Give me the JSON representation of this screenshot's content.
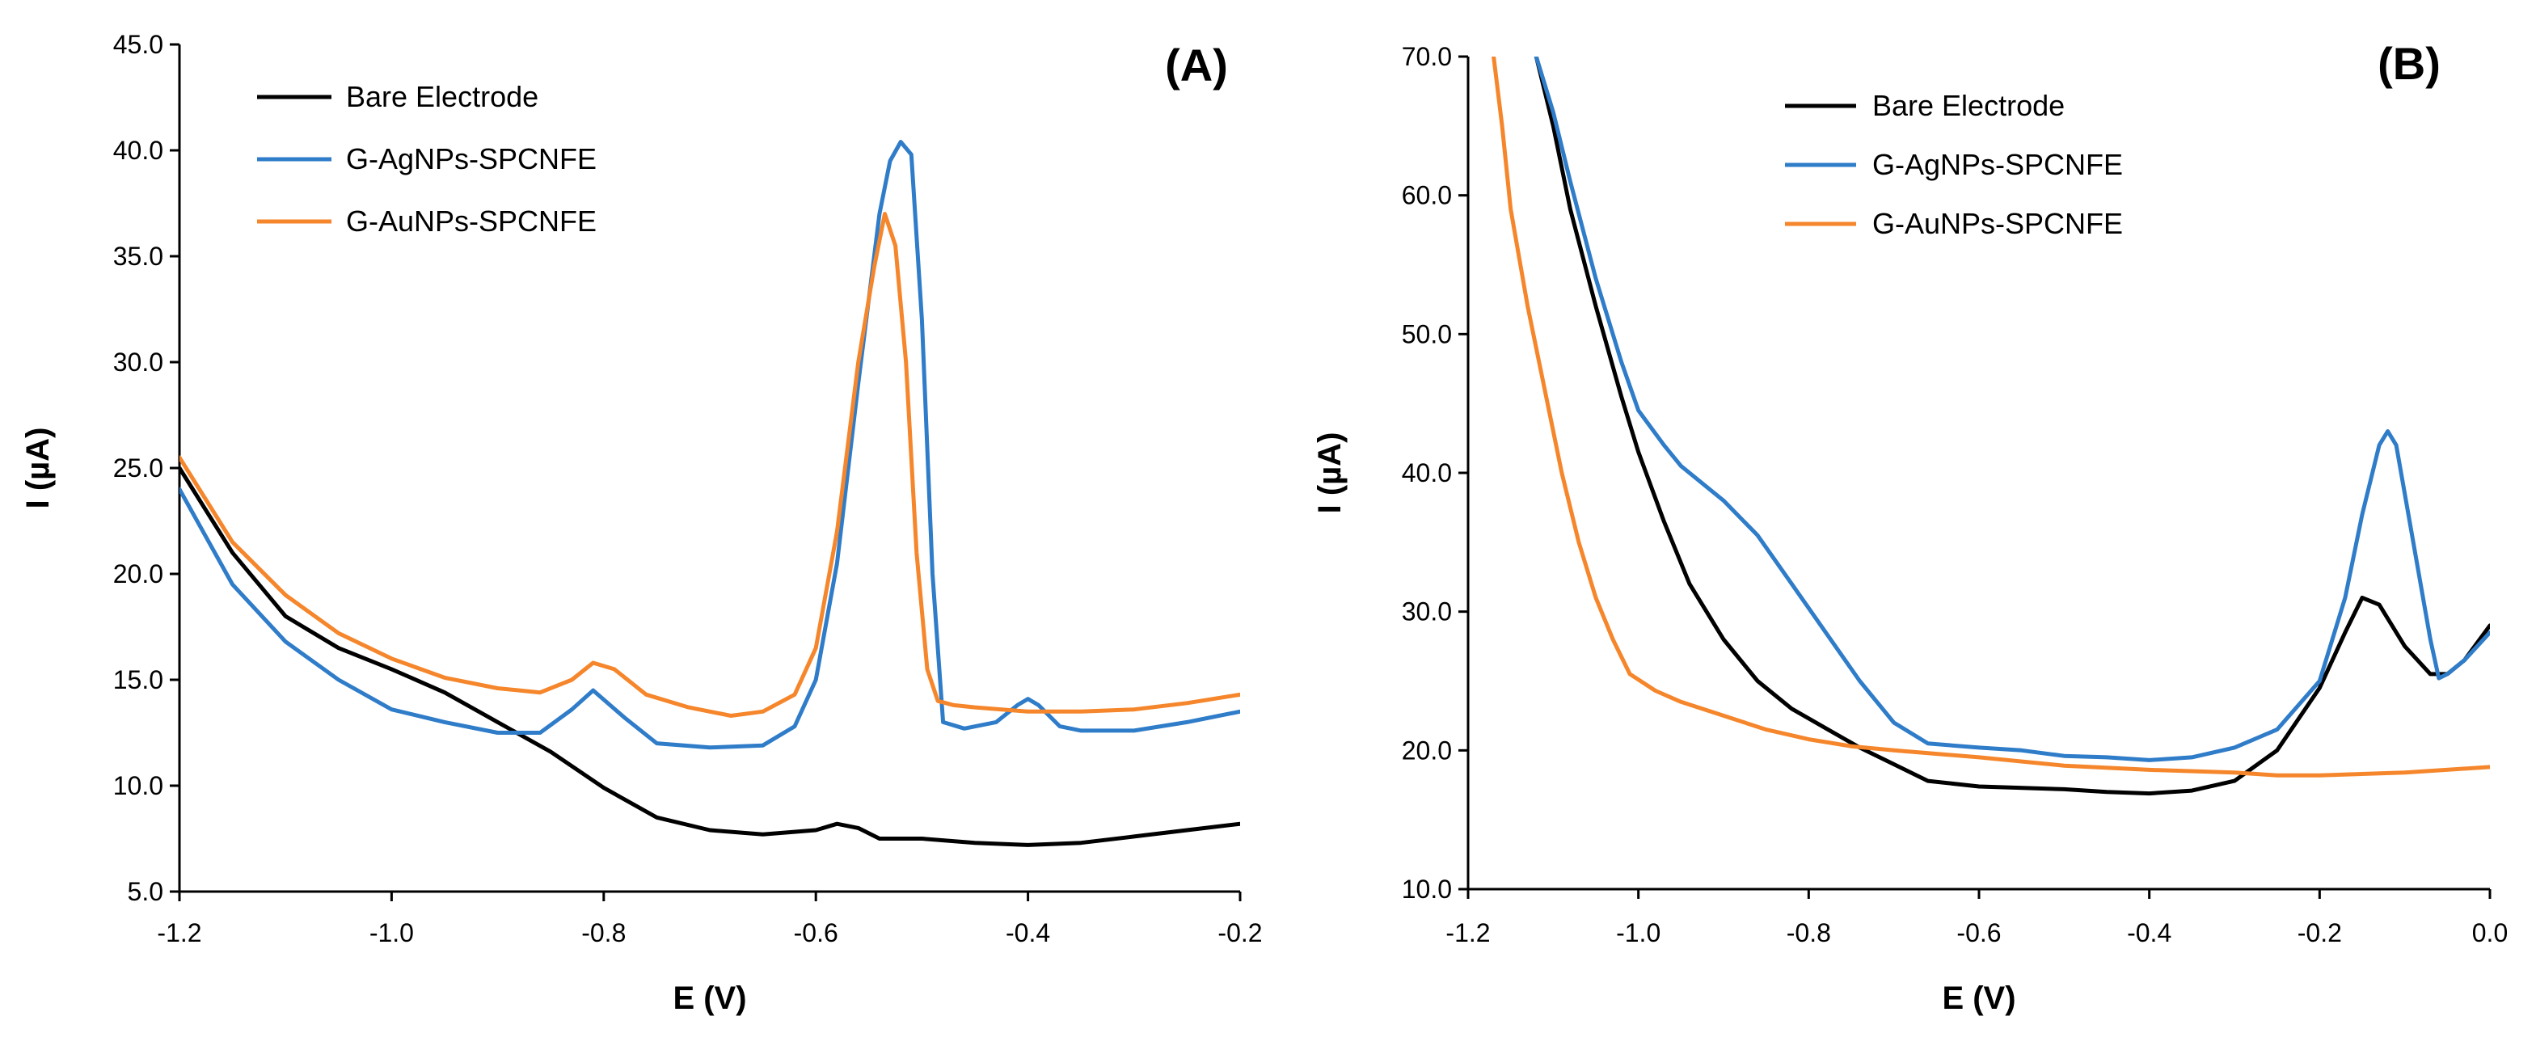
{
  "colors": {
    "bare": "#000000",
    "ag": "#2f7cc9",
    "au": "#f5862b",
    "axis": "#000000"
  },
  "chart_data": [
    {
      "type": "line",
      "panel_label": "(A)",
      "xlabel": "E (V)",
      "ylabel": "I (µA)",
      "xlim": [
        -1.2,
        -0.2
      ],
      "ylim": [
        5.0,
        45.0
      ],
      "x_ticks": [
        -1.2,
        -1.0,
        -0.8,
        -0.6,
        -0.4,
        -0.2
      ],
      "x_tick_labels": [
        "-1.2",
        "-1.0",
        "-0.8",
        "-0.6",
        "-0.4",
        "-0.2"
      ],
      "y_ticks": [
        5,
        10,
        15,
        20,
        25,
        30,
        35,
        40,
        45
      ],
      "y_tick_labels": [
        "5.0",
        "10.0",
        "15.0",
        "20.0",
        "25.0",
        "30.0",
        "35.0",
        "40.0",
        "45.0"
      ],
      "legend": [
        "Bare Electrode",
        "G-AgNPs-SPCNFE",
        "G-AuNPs-SPCNFE"
      ],
      "series": [
        {
          "name": "Bare Electrode",
          "color": "#000000",
          "x": [
            -1.2,
            -1.15,
            -1.1,
            -1.05,
            -1.0,
            -0.95,
            -0.9,
            -0.85,
            -0.8,
            -0.75,
            -0.7,
            -0.65,
            -0.6,
            -0.58,
            -0.56,
            -0.54,
            -0.5,
            -0.45,
            -0.4,
            -0.35,
            -0.3,
            -0.25,
            -0.2
          ],
          "y": [
            25.0,
            21.0,
            18.0,
            16.5,
            15.5,
            14.4,
            13.0,
            11.6,
            9.9,
            8.5,
            7.9,
            7.7,
            7.9,
            8.2,
            8.0,
            7.5,
            7.5,
            7.3,
            7.2,
            7.3,
            7.6,
            7.9,
            8.2
          ]
        },
        {
          "name": "G-AgNPs-SPCNFE",
          "color": "#2f7cc9",
          "x": [
            -1.2,
            -1.15,
            -1.1,
            -1.05,
            -1.0,
            -0.95,
            -0.9,
            -0.86,
            -0.83,
            -0.81,
            -0.78,
            -0.75,
            -0.7,
            -0.65,
            -0.62,
            -0.6,
            -0.58,
            -0.56,
            -0.54,
            -0.53,
            -0.52,
            -0.51,
            -0.5,
            -0.49,
            -0.48,
            -0.46,
            -0.43,
            -0.41,
            -0.4,
            -0.39,
            -0.37,
            -0.35,
            -0.3,
            -0.25,
            -0.2
          ],
          "y": [
            24.0,
            19.5,
            16.8,
            15.0,
            13.6,
            13.0,
            12.5,
            12.5,
            13.6,
            14.5,
            13.2,
            12.0,
            11.8,
            11.9,
            12.8,
            15.0,
            20.5,
            29.0,
            37.0,
            39.5,
            40.4,
            39.8,
            32.0,
            20.0,
            13.0,
            12.7,
            13.0,
            13.8,
            14.1,
            13.8,
            12.8,
            12.6,
            12.6,
            13.0,
            13.5
          ]
        },
        {
          "name": "G-AuNPs-SPCNFE",
          "color": "#f5862b",
          "x": [
            -1.2,
            -1.15,
            -1.1,
            -1.05,
            -1.0,
            -0.95,
            -0.9,
            -0.86,
            -0.83,
            -0.81,
            -0.79,
            -0.76,
            -0.72,
            -0.68,
            -0.65,
            -0.62,
            -0.6,
            -0.58,
            -0.56,
            -0.545,
            -0.535,
            -0.525,
            -0.515,
            -0.505,
            -0.495,
            -0.485,
            -0.47,
            -0.45,
            -0.4,
            -0.35,
            -0.3,
            -0.25,
            -0.2
          ],
          "y": [
            25.5,
            21.5,
            19.0,
            17.2,
            16.0,
            15.1,
            14.6,
            14.4,
            15.0,
            15.8,
            15.5,
            14.3,
            13.7,
            13.3,
            13.5,
            14.3,
            16.5,
            22.0,
            30.0,
            34.5,
            37.0,
            35.5,
            30.0,
            21.0,
            15.5,
            14.0,
            13.8,
            13.7,
            13.5,
            13.5,
            13.6,
            13.9,
            14.3
          ]
        }
      ]
    },
    {
      "type": "line",
      "panel_label": "(B)",
      "xlabel": "E (V)",
      "ylabel": "I (µA)",
      "xlim": [
        -1.2,
        0.0
      ],
      "ylim": [
        10.0,
        70.0
      ],
      "x_ticks": [
        -1.2,
        -1.0,
        -0.8,
        -0.6,
        -0.4,
        -0.2,
        0.0
      ],
      "x_tick_labels": [
        "-1.2",
        "-1.0",
        "-0.8",
        "-0.6",
        "-0.4",
        "-0.2",
        "0.0"
      ],
      "y_ticks": [
        10,
        20,
        30,
        40,
        50,
        60,
        70
      ],
      "y_tick_labels": [
        "10.0",
        "20.0",
        "30.0",
        "40.0",
        "50.0",
        "60.0",
        "70.0"
      ],
      "legend": [
        "Bare Electrode",
        "G-AgNPs-SPCNFE",
        "G-AuNPs-SPCNFE"
      ],
      "series": [
        {
          "name": "Bare Electrode",
          "color": "#000000",
          "x": [
            -1.12,
            -1.1,
            -1.08,
            -1.05,
            -1.02,
            -1.0,
            -0.97,
            -0.94,
            -0.9,
            -0.86,
            -0.82,
            -0.78,
            -0.74,
            -0.7,
            -0.66,
            -0.6,
            -0.5,
            -0.45,
            -0.4,
            -0.35,
            -0.3,
            -0.25,
            -0.2,
            -0.17,
            -0.15,
            -0.13,
            -0.1,
            -0.07,
            -0.05,
            -0.03,
            0.0
          ],
          "y": [
            70.0,
            65.0,
            59.0,
            52.0,
            45.5,
            41.5,
            36.5,
            32.0,
            28.0,
            25.0,
            23.0,
            21.6,
            20.2,
            19.0,
            17.8,
            17.4,
            17.2,
            17.0,
            16.9,
            17.1,
            17.8,
            20.0,
            24.5,
            28.5,
            31.0,
            30.5,
            27.5,
            25.5,
            25.5,
            26.5,
            29.0
          ]
        },
        {
          "name": "G-AgNPs-SPCNFE",
          "color": "#2f7cc9",
          "x": [
            -1.12,
            -1.1,
            -1.08,
            -1.05,
            -1.02,
            -1.0,
            -0.97,
            -0.95,
            -0.9,
            -0.86,
            -0.82,
            -0.78,
            -0.74,
            -0.7,
            -0.66,
            -0.6,
            -0.55,
            -0.5,
            -0.45,
            -0.4,
            -0.35,
            -0.3,
            -0.25,
            -0.2,
            -0.17,
            -0.15,
            -0.13,
            -0.12,
            -0.11,
            -0.09,
            -0.07,
            -0.06,
            -0.05,
            -0.03,
            0.0
          ],
          "y": [
            70.0,
            66.0,
            61.0,
            54.0,
            48.0,
            44.5,
            42.0,
            40.5,
            38.0,
            35.5,
            32.0,
            28.5,
            25.0,
            22.0,
            20.5,
            20.2,
            20.0,
            19.6,
            19.5,
            19.3,
            19.5,
            20.2,
            21.5,
            25.0,
            31.0,
            37.0,
            42.0,
            43.0,
            42.0,
            35.0,
            28.0,
            25.2,
            25.5,
            26.5,
            28.5
          ]
        },
        {
          "name": "G-AuNPs-SPCNFE",
          "color": "#f5862b",
          "x": [
            -1.17,
            -1.16,
            -1.15,
            -1.13,
            -1.11,
            -1.09,
            -1.07,
            -1.05,
            -1.03,
            -1.01,
            -0.98,
            -0.95,
            -0.9,
            -0.85,
            -0.8,
            -0.75,
            -0.7,
            -0.6,
            -0.5,
            -0.4,
            -0.3,
            -0.25,
            -0.2,
            -0.1,
            0.0
          ],
          "y": [
            70.0,
            65.0,
            59.0,
            52.0,
            46.0,
            40.0,
            35.0,
            31.0,
            28.0,
            25.5,
            24.3,
            23.5,
            22.5,
            21.5,
            20.8,
            20.3,
            20.0,
            19.5,
            18.9,
            18.6,
            18.4,
            18.2,
            18.2,
            18.4,
            18.8
          ]
        }
      ]
    }
  ]
}
